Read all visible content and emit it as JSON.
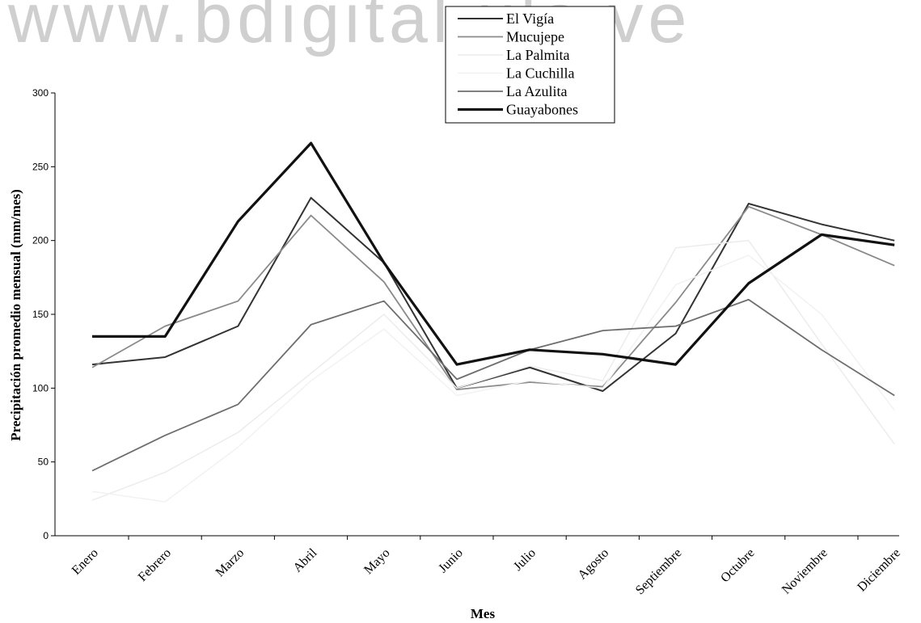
{
  "chart_data": {
    "type": "line",
    "watermark": "www.bdigital.ula.ve",
    "x_label": "Mes",
    "y_label": "Precipitación promedio mensual (mm/mes)",
    "categories": [
      "Enero",
      "Febrero",
      "Marzo",
      "Abril",
      "Mayo",
      "Junio",
      "Julio",
      "Agosto",
      "Septiembre",
      "Octubre",
      "Noviembre",
      "Diciembre"
    ],
    "ylim": [
      0,
      300
    ],
    "yticks": [
      0,
      50,
      100,
      150,
      200,
      250,
      300
    ],
    "series": [
      {
        "name": "El Vigía",
        "color": "#333333",
        "width": 2,
        "values": [
          116,
          121,
          142,
          229,
          185,
          100,
          114,
          98,
          137,
          225,
          211,
          200
        ]
      },
      {
        "name": "Mucujepe",
        "color": "#8a8a8a",
        "width": 1.8,
        "values": [
          114,
          142,
          159,
          217,
          172,
          99,
          104,
          101,
          158,
          223,
          204,
          183
        ]
      },
      {
        "name": "La Palmita",
        "color": "#ececec",
        "width": 1.5,
        "values": [
          24,
          43,
          70,
          110,
          150,
          100,
          115,
          105,
          195,
          200,
          130,
          62
        ]
      },
      {
        "name": "La Cuchilla",
        "color": "#f2f2f2",
        "width": 1.5,
        "values": [
          30,
          23,
          60,
          105,
          140,
          95,
          105,
          100,
          170,
          190,
          150,
          85
        ]
      },
      {
        "name": "La Azulita",
        "color": "#6e6e6e",
        "width": 1.8,
        "values": [
          44,
          68,
          89,
          143,
          159,
          106,
          126,
          139,
          142,
          160,
          126,
          95
        ]
      },
      {
        "name": "Guayabones",
        "color": "#111111",
        "width": 3.2,
        "values": [
          135,
          135,
          213,
          266,
          185,
          116,
          126,
          123,
          116,
          171,
          204,
          197
        ]
      }
    ]
  }
}
